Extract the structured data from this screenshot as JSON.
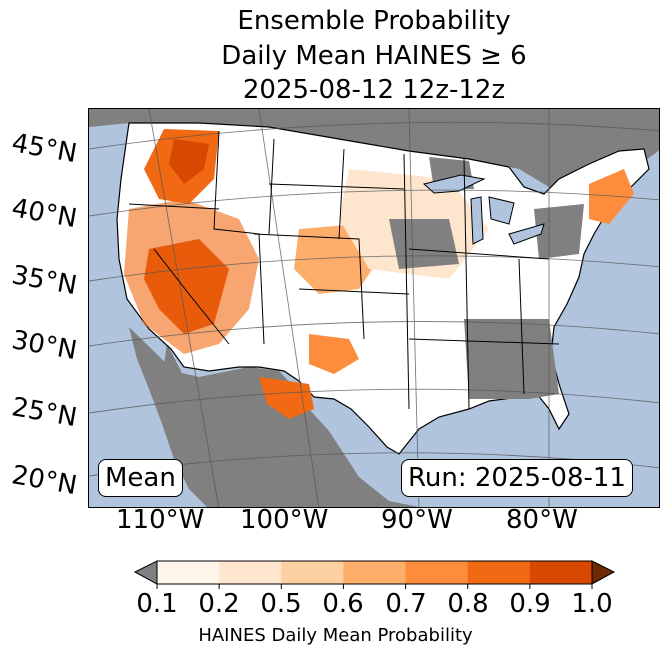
{
  "title": {
    "line1": "Ensemble Probability",
    "line2": "Daily Mean HAINES ≥ 6",
    "line3": "2025-08-12 12z-12z"
  },
  "map": {
    "lat_labels": [
      "45°N",
      "40°N",
      "35°N",
      "30°N",
      "25°N",
      "20°N"
    ],
    "lon_labels": [
      "110°W",
      "100°W",
      "90°W",
      "80°W"
    ],
    "mean_label": "Mean",
    "run_label": "Run: 2025-08-11",
    "colors": {
      "ocean": "#b0c4de",
      "no_data": "#808080",
      "land": "#ffffff"
    }
  },
  "colorbar": {
    "ticks": [
      "0.1",
      "0.2",
      "0.5",
      "0.6",
      "0.7",
      "0.8",
      "0.9",
      "1.0"
    ],
    "label": "HAINES Daily Mean Probability",
    "under_color": "#808080",
    "over_color": "#6e2a05",
    "colors": [
      "#fff5eb",
      "#fee6ce",
      "#fdd0a2",
      "#fdae6b",
      "#fd8d3c",
      "#f16913",
      "#d94801"
    ]
  }
}
